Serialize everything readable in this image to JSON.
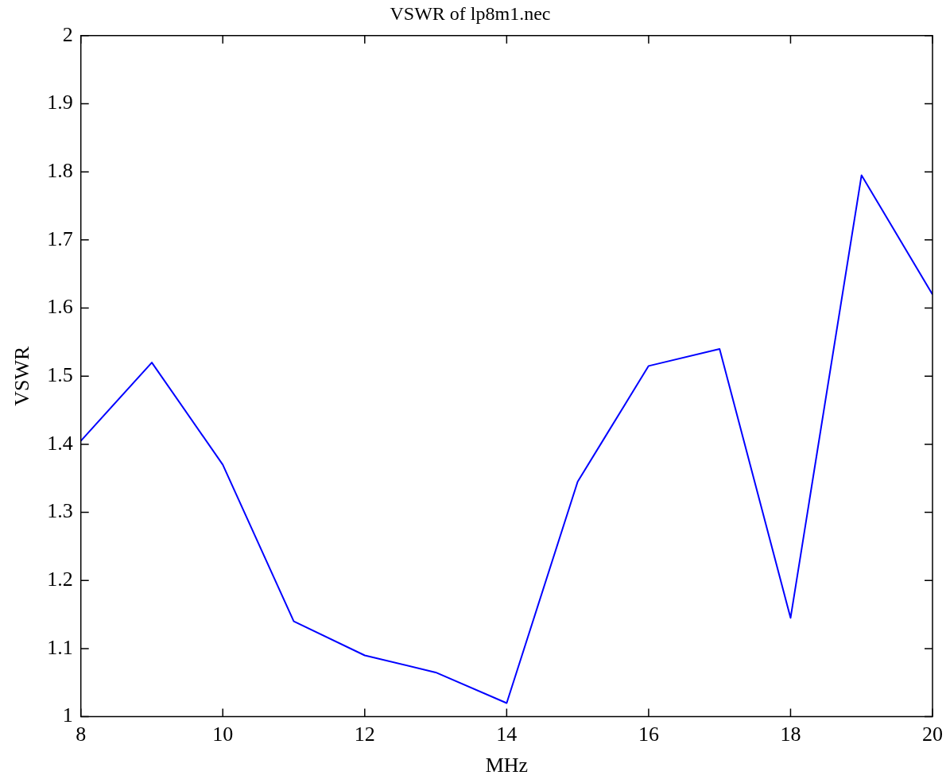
{
  "chart_data": {
    "type": "line",
    "title": "VSWR of lp8m1.nec",
    "xlabel": "MHz",
    "ylabel": "VSWR",
    "x": [
      8,
      9,
      10,
      11,
      12,
      13,
      14,
      15,
      16,
      17,
      18,
      19,
      20
    ],
    "series": [
      {
        "color": "#0000ff",
        "values": [
          1.405,
          1.52,
          1.37,
          1.14,
          1.09,
          1.065,
          1.02,
          1.345,
          1.515,
          1.54,
          1.145,
          1.795,
          1.62
        ]
      }
    ],
    "xlim": [
      8,
      20
    ],
    "xticks": [
      8,
      10,
      12,
      14,
      16,
      18,
      20
    ],
    "ylim": [
      1,
      2
    ],
    "yticks": [
      1,
      1.1,
      1.2,
      1.3,
      1.4,
      1.5,
      1.6,
      1.7,
      1.8,
      1.9,
      2
    ],
    "grid": false,
    "legend": false,
    "marker": "none",
    "line_style": "solid"
  }
}
